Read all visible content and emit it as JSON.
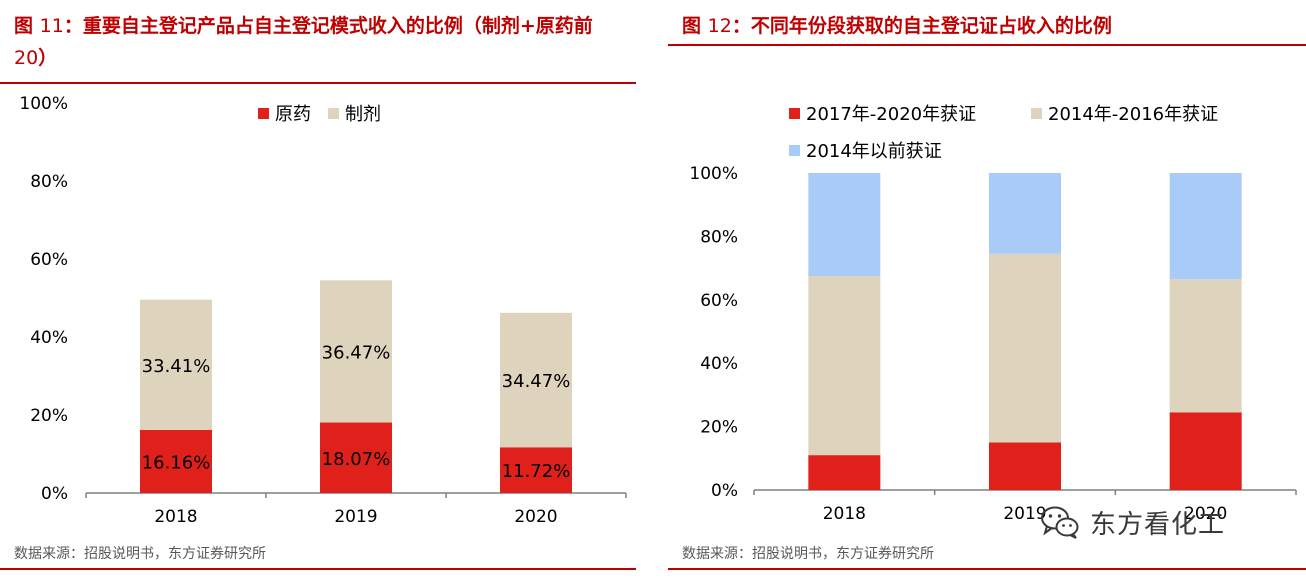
{
  "left": {
    "title_prefix": "图 ",
    "title_number": "11",
    "title_text": "：重要自主登记产品占自主登记模式收入的比例（制剂+原药前 ",
    "title_number2": "20",
    "title_suffix": "）",
    "source": "数据来源：招股说明书，东方证券研究所"
  },
  "right": {
    "title_prefix": "图 ",
    "title_number": "12",
    "title_text": "：不同年份段获取的自主登记证占收入的比例",
    "source": "数据来源：招股说明书，东方证券研究所"
  },
  "watermark": {
    "text": "东方看化工",
    "icon": "wechat-icon"
  },
  "colors": {
    "red": "#e0201b",
    "tan": "#ded3bd",
    "blue": "#a9cbf7",
    "title_red": "#c00000"
  },
  "chart_data": [
    {
      "type": "bar",
      "stacked": true,
      "categories": [
        "2018",
        "2019",
        "2020"
      ],
      "series": [
        {
          "name": "原药",
          "values": [
            16.16,
            18.07,
            11.72
          ],
          "labels": [
            "16.16%",
            "18.07%",
            "11.72%"
          ],
          "color": "#e0201b"
        },
        {
          "name": "制剂",
          "values": [
            33.41,
            36.47,
            34.47
          ],
          "labels": [
            "33.41%",
            "36.47%",
            "34.47%"
          ],
          "color": "#ded3bd"
        }
      ],
      "ylim": [
        0,
        100
      ],
      "yticks": [
        "0%",
        "20%",
        "40%",
        "60%",
        "80%",
        "100%"
      ],
      "grid": false,
      "legend": "top-center"
    },
    {
      "type": "bar",
      "stacked": true,
      "categories": [
        "2018",
        "2019",
        "2020"
      ],
      "series": [
        {
          "name": "2017年-2020年获证",
          "values": [
            11,
            15,
            24.5
          ],
          "color": "#e0201b"
        },
        {
          "name": "2014年-2016年获证",
          "values": [
            56.5,
            59.5,
            42
          ],
          "color": "#ded3bd"
        },
        {
          "name": "2014年以前获证",
          "values": [
            32.5,
            25.5,
            33.5
          ],
          "color": "#a9cbf7"
        }
      ],
      "ylim": [
        0,
        100
      ],
      "yticks": [
        "0%",
        "20%",
        "40%",
        "60%",
        "80%",
        "100%"
      ],
      "grid": false,
      "legend": "top"
    }
  ]
}
